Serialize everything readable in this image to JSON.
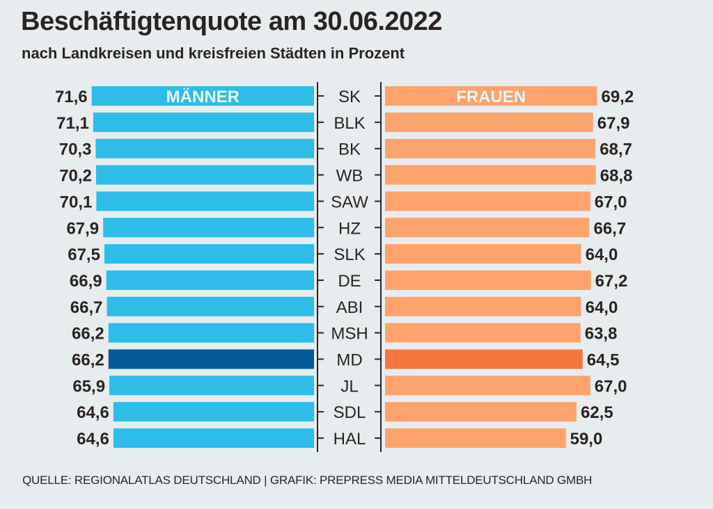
{
  "title": "Beschäftigtenquote am 30.06.2022",
  "subtitle": "nach Landkreisen und kreisfreien Städten in Prozent",
  "source": "QUELLE: REGIONALATLAS DEUTSCHLAND | GRAFIK: PREPRESS MEDIA MITTELDEUTSCHLAND GMBH",
  "colors": {
    "men": "#2ebde9",
    "men_highlight": "#035a96",
    "women": "#fda36b",
    "women_highlight": "#f5763f",
    "background": "#e7edee",
    "text": "#2a2320"
  },
  "chart_data": {
    "type": "bar",
    "orientation": "diverging-horizontal",
    "title": "Beschäftigtenquote am 30.06.2022",
    "subtitle": "nach Landkreisen und kreisfreien Städten in Prozent",
    "categories": [
      "SK",
      "BLK",
      "BK",
      "WB",
      "SAW",
      "HZ",
      "SLK",
      "DE",
      "ABI",
      "MSH",
      "MD",
      "JL",
      "SDL",
      "HAL"
    ],
    "highlight_category": "MD",
    "series": [
      {
        "name": "MÄNNER",
        "side": "left",
        "values": [
          71.6,
          71.1,
          70.3,
          70.2,
          70.1,
          67.9,
          67.5,
          66.9,
          66.7,
          66.2,
          66.2,
          65.9,
          64.6,
          64.6
        ],
        "labels": [
          "71,6",
          "71,1",
          "70,3",
          "70,2",
          "70,1",
          "67,9",
          "67,5",
          "66,9",
          "66,7",
          "66,2",
          "66,2",
          "65,9",
          "64,6",
          "64,6"
        ]
      },
      {
        "name": "FRAUEN",
        "side": "right",
        "values": [
          69.2,
          67.9,
          68.7,
          68.8,
          67.0,
          66.7,
          64.0,
          67.2,
          64.0,
          63.8,
          64.5,
          67.0,
          62.5,
          59.0
        ],
        "labels": [
          "69,2",
          "67,9",
          "68,7",
          "68,8",
          "67,0",
          "66,7",
          "64,0",
          "67,2",
          "64,0",
          "63,8",
          "64,5",
          "67,0",
          "62,5",
          "59,0"
        ]
      }
    ],
    "xlim": [
      0,
      72
    ]
  }
}
